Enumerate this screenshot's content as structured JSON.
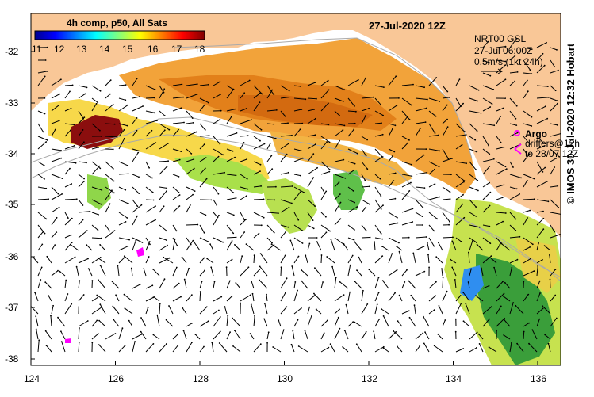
{
  "title": "27-Jul-2020 12Z",
  "colorbar": {
    "label": "4h comp, p50, All Sats",
    "ticks": [
      "11",
      "12",
      "13",
      "14",
      "15",
      "16",
      "17",
      "18"
    ],
    "range": [
      11,
      18
    ]
  },
  "currents_legend": {
    "line1": "NRT00 GSL",
    "line2": "27-Jul 06:00Z",
    "line3": "0.5m/s (1kt 24h)"
  },
  "drifter_legend": {
    "argo": "Argo",
    "drifters": "drifters@12h",
    "period": "to 28/07 12Z"
  },
  "credit": "© IMOS 30-Jul-2020 12:32 Hobart",
  "x_axis_labels": [
    "124",
    "126",
    "128",
    "130",
    "132",
    "134",
    "136"
  ],
  "y_axis_labels": [
    "-32",
    "-33",
    "-34",
    "-35",
    "-36",
    "-37",
    "-38"
  ],
  "map": {
    "lon_range": [
      124,
      136.6
    ],
    "lat_range": [
      -38.2,
      -31.4
    ],
    "land_color": "#f9c797",
    "ocean_nodata_color": "#ffffff",
    "colormap": "jet"
  }
}
